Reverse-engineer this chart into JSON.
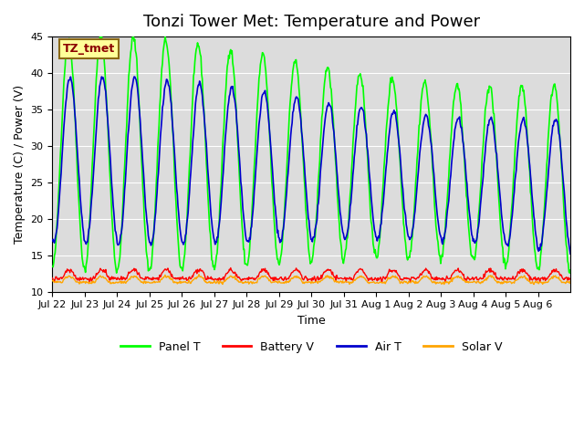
{
  "title": "Tonzi Tower Met: Temperature and Power",
  "xlabel": "Time",
  "ylabel": "Temperature (C) / Power (V)",
  "ylim": [
    10,
    45
  ],
  "yticks": [
    10,
    15,
    20,
    25,
    30,
    35,
    40,
    45
  ],
  "x_tick_labels": [
    "Jul 22",
    "Jul 23",
    "Jul 24",
    "Jul 25",
    "Jul 26",
    "Jul 27",
    "Jul 28",
    "Jul 29",
    "Jul 30",
    "Jul 31",
    "Aug 1",
    "Aug 2",
    "Aug 3",
    "Aug 4",
    "Aug 5",
    "Aug 6"
  ],
  "n_days": 16,
  "annotation_text": "TZ_tmet",
  "annotation_box_color": "#FFFF99",
  "annotation_text_color": "#8B0000",
  "annotation_edge_color": "#8B6914",
  "panel_t_color": "#00FF00",
  "battery_v_color": "#FF0000",
  "air_t_color": "#0000CD",
  "solar_v_color": "#FFA500",
  "bg_color": "#DCDCDC",
  "grid_color": "#FFFFFF",
  "title_fontsize": 13,
  "tick_fontsize": 8,
  "axis_label_fontsize": 9,
  "legend_fontsize": 9
}
